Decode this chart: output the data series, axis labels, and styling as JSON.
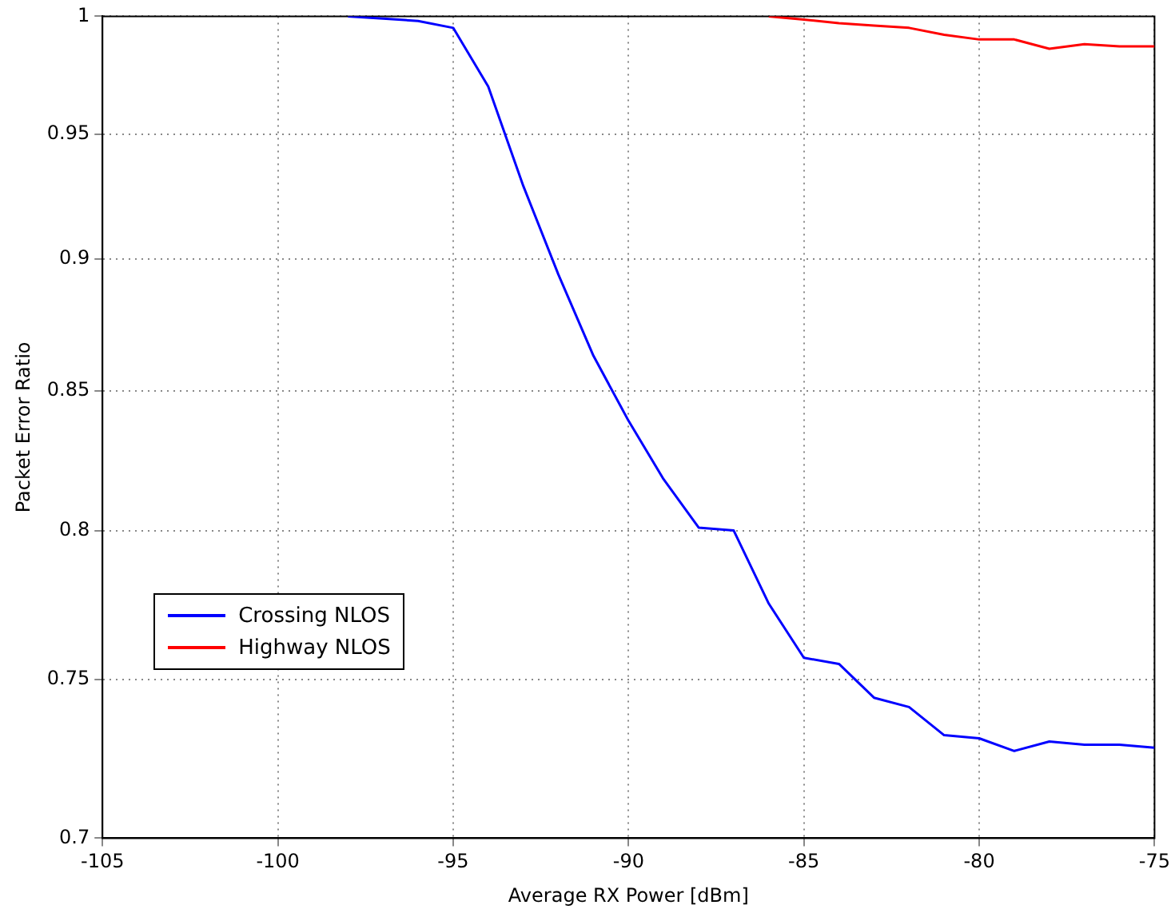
{
  "chart_data": {
    "type": "line",
    "xlabel": "Average RX Power [dBm]",
    "ylabel": "Packet Error Ratio",
    "x": [
      -98,
      -97,
      -96,
      -95,
      -94,
      -93,
      -92,
      -91,
      -90,
      -89,
      -88,
      -87,
      -86,
      -85,
      -84,
      -83,
      -82,
      -81,
      -80,
      -79,
      -78,
      -77,
      -76,
      -75
    ],
    "series": [
      {
        "name": "Crossing NLOS",
        "color": "#0000ff",
        "values": [
          1,
          0.999,
          0.998,
          0.995,
          0.97,
          0.929,
          0.894,
          0.863,
          0.839,
          0.818,
          0.801,
          0.8,
          0.775,
          0.757,
          0.755,
          0.744,
          0.741,
          0.732,
          0.731,
          0.727,
          0.73,
          0.729,
          0.729,
          0.728
        ]
      },
      {
        "name": "Highway NLOS",
        "color": "#ff0000",
        "x": [
          -86,
          -85,
          -84,
          -83,
          -82,
          -81,
          -80,
          -79,
          -78,
          -77,
          -76,
          -75
        ],
        "values": [
          1,
          0.9986,
          0.997,
          0.996,
          0.995,
          0.992,
          0.99,
          0.99,
          0.986,
          0.988,
          0.987,
          0.987
        ]
      }
    ],
    "xlim": [
      -105,
      -75
    ],
    "xticks": [
      -105,
      -100,
      -95,
      -90,
      -85,
      -80,
      -75
    ],
    "ylim": [
      0.7,
      1
    ],
    "yticks": [
      0.7,
      0.75,
      0.8,
      0.85,
      0.9,
      0.95,
      1
    ],
    "log": "y",
    "grid": true,
    "legend": "bottom left",
    "marker": "none",
    "line_style": "solid"
  }
}
